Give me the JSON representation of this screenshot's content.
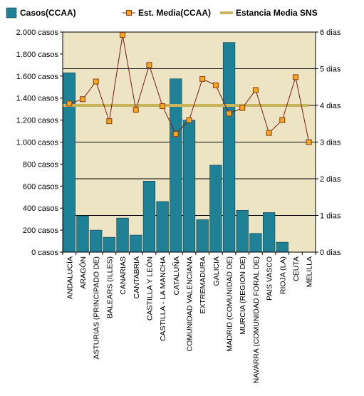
{
  "chart_data": {
    "type": "bar",
    "categories": [
      "ANDALUCÍA",
      "ARAGÓN",
      "ASTURIAS (PRINCIPADO DE)",
      "BALEARS (ILLES)",
      "CANARIAS",
      "CANTABRIA",
      "CASTILLA Y LEÓN",
      "CASTILLA - LA MANCHA",
      "CATALUÑA",
      "COMUNIDAD VALENCIANA",
      "EXTREMADURA",
      "GALICIA",
      "MADRID (COMUNIDAD DE)",
      "MURCIA (REGION DE)",
      "NAVARRA (COMUNIDAD FORAL DE)",
      "PAIS VASCO",
      "RIOJA (LA)",
      "CEUTA",
      "MELILLA"
    ],
    "series": [
      {
        "name": "Casos(CCAA)",
        "type": "bar",
        "axis": "left",
        "color": "#1f8196",
        "values": [
          1630,
          330,
          200,
          135,
          310,
          155,
          645,
          460,
          1575,
          1200,
          295,
          790,
          1905,
          380,
          170,
          360,
          90,
          0,
          0
        ]
      },
      {
        "name": "Est. Media(CCAA)",
        "type": "line",
        "axis": "right",
        "color": "#7b1a16",
        "marker_color": "#f5a623",
        "values": [
          4.05,
          4.17,
          4.65,
          3.57,
          5.92,
          3.88,
          5.1,
          3.98,
          3.22,
          3.6,
          4.72,
          4.55,
          3.78,
          3.93,
          4.42,
          3.25,
          3.6,
          4.77,
          3.0
        ]
      },
      {
        "name": "Estancia Media SNS",
        "type": "reference-line",
        "axis": "right",
        "color": "#c8b45a",
        "value": 4.0
      }
    ],
    "ylim_left": [
      0,
      2000
    ],
    "ylim_right": [
      0,
      6
    ],
    "yticks_left": [
      "0 casos",
      "200 casos",
      "400 casos",
      "600 casos",
      "800 casos",
      "1.000 casos",
      "1.200 casos",
      "1.400 casos",
      "1.600 casos",
      "1.800 casos",
      "2.000 casos"
    ],
    "yticks_right": [
      "0 dias",
      "1 dias",
      "2 dias",
      "3 dias",
      "4 dias",
      "5 dias",
      "6 dias"
    ],
    "grid": true,
    "plot_background": "#ede4c4",
    "legend_position": "top"
  }
}
